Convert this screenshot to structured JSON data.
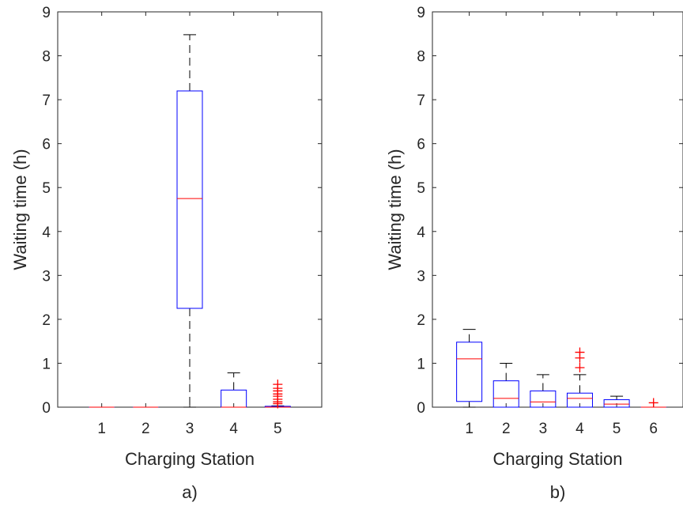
{
  "chart_data": [
    {
      "type": "box",
      "panel_label": "a)",
      "xlabel": "Charging Station",
      "ylabel": "Waiting time (h)",
      "ylim": [
        0,
        9
      ],
      "yticks": [
        0,
        1,
        2,
        3,
        4,
        5,
        6,
        7,
        8,
        9
      ],
      "categories": [
        "1",
        "2",
        "3",
        "4",
        "5"
      ],
      "boxes": [
        {
          "q1": 0,
          "median": 0,
          "q3": 0,
          "whisker_low": 0,
          "whisker_high": 0,
          "outliers": []
        },
        {
          "q1": 0,
          "median": 0,
          "q3": 0,
          "whisker_low": 0,
          "whisker_high": 0,
          "outliers": []
        },
        {
          "q1": 2.25,
          "median": 4.75,
          "q3": 7.2,
          "whisker_low": 0,
          "whisker_high": 8.48,
          "outliers": []
        },
        {
          "q1": 0,
          "median": 0,
          "q3": 0.39,
          "whisker_low": 0,
          "whisker_high": 0.78,
          "outliers": []
        },
        {
          "q1": 0,
          "median": 0,
          "q3": 0.02,
          "whisker_low": 0,
          "whisker_high": 0.03,
          "outliers": [
            0.08,
            0.12,
            0.18,
            0.25,
            0.3,
            0.37,
            0.43,
            0.52
          ]
        }
      ],
      "colors": {
        "box": "#0000ff",
        "median": "#ff0000",
        "whisker": "#000000",
        "outlier": "#ff0000"
      }
    },
    {
      "type": "box",
      "panel_label": "b)",
      "xlabel": "Charging Station",
      "ylabel": "Waiting time (h)",
      "ylim": [
        0,
        9
      ],
      "yticks": [
        0,
        1,
        2,
        3,
        4,
        5,
        6,
        7,
        8,
        9
      ],
      "categories": [
        "1",
        "2",
        "3",
        "4",
        "5",
        "6"
      ],
      "boxes": [
        {
          "q1": 0.13,
          "median": 1.1,
          "q3": 1.48,
          "whisker_low": 0,
          "whisker_high": 1.77,
          "outliers": []
        },
        {
          "q1": 0,
          "median": 0.2,
          "q3": 0.6,
          "whisker_low": 0,
          "whisker_high": 1.0,
          "outliers": []
        },
        {
          "q1": 0,
          "median": 0.12,
          "q3": 0.37,
          "whisker_low": 0,
          "whisker_high": 0.74,
          "outliers": []
        },
        {
          "q1": 0,
          "median": 0.2,
          "q3": 0.32,
          "whisker_low": 0,
          "whisker_high": 0.74,
          "outliers": [
            0.9,
            1.12,
            1.25
          ]
        },
        {
          "q1": 0,
          "median": 0.07,
          "q3": 0.17,
          "whisker_low": 0,
          "whisker_high": 0.25,
          "outliers": []
        },
        {
          "q1": 0,
          "median": 0,
          "q3": 0,
          "whisker_low": 0,
          "whisker_high": 0,
          "outliers": [
            0.1
          ]
        }
      ],
      "colors": {
        "box": "#0000ff",
        "median": "#ff0000",
        "whisker": "#000000",
        "outlier": "#ff0000"
      }
    }
  ]
}
